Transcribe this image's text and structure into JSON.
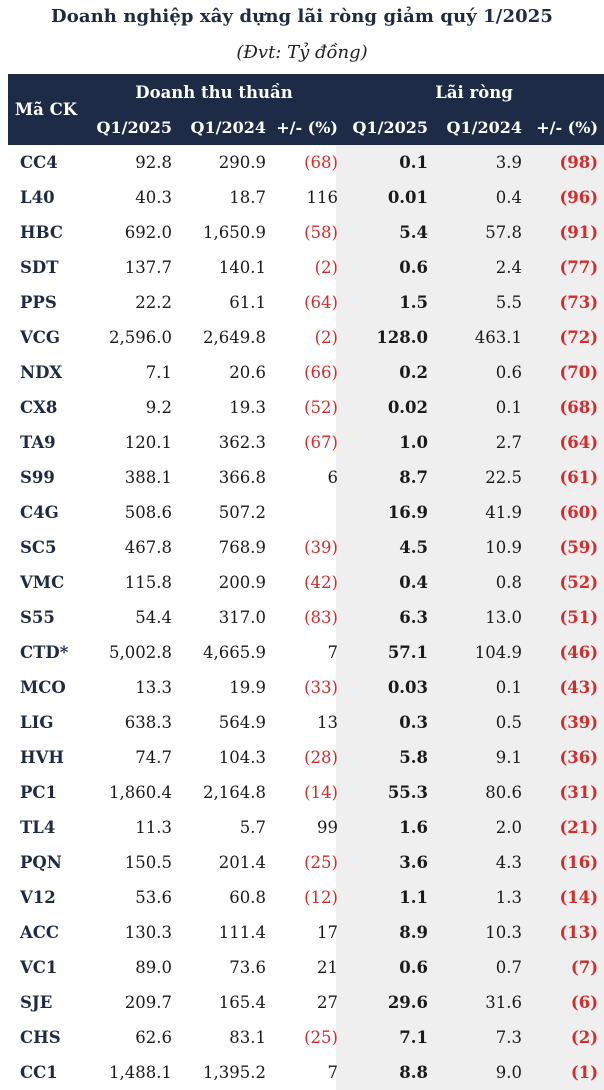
{
  "title": "Doanh nghiệp xây dựng lãi ròng giảm quý 1/2025",
  "unit": "(Đvt: Tỷ đồng)",
  "headers": {
    "code": "Mã CK",
    "revenue_group": "Doanh thu thuần",
    "profit_group": "Lãi ròng",
    "q1_2025": "Q1/2025",
    "q1_2024": "Q1/2024",
    "change": "+/- (%)"
  },
  "colors": {
    "header_bg": "#1d2b47",
    "negative": "#d62b2b",
    "band": "#efeff0"
  },
  "rows": [
    {
      "code": "CC4",
      "rev25": "92.8",
      "rev24": "290.9",
      "revchg": "(68)",
      "pro25": "0.1",
      "pro24": "3.9",
      "prochg": "(98)"
    },
    {
      "code": "L40",
      "rev25": "40.3",
      "rev24": "18.7",
      "revchg": "116",
      "pro25": "0.01",
      "pro24": "0.4",
      "prochg": "(96)"
    },
    {
      "code": "HBC",
      "rev25": "692.0",
      "rev24": "1,650.9",
      "revchg": "(58)",
      "pro25": "5.4",
      "pro24": "57.8",
      "prochg": "(91)"
    },
    {
      "code": "SDT",
      "rev25": "137.7",
      "rev24": "140.1",
      "revchg": "(2)",
      "pro25": "0.6",
      "pro24": "2.4",
      "prochg": "(77)"
    },
    {
      "code": "PPS",
      "rev25": "22.2",
      "rev24": "61.1",
      "revchg": "(64)",
      "pro25": "1.5",
      "pro24": "5.5",
      "prochg": "(73)"
    },
    {
      "code": "VCG",
      "rev25": "2,596.0",
      "rev24": "2,649.8",
      "revchg": "(2)",
      "pro25": "128.0",
      "pro24": "463.1",
      "prochg": "(72)"
    },
    {
      "code": "NDX",
      "rev25": "7.1",
      "rev24": "20.6",
      "revchg": "(66)",
      "pro25": "0.2",
      "pro24": "0.6",
      "prochg": "(70)"
    },
    {
      "code": "CX8",
      "rev25": "9.2",
      "rev24": "19.3",
      "revchg": "(52)",
      "pro25": "0.02",
      "pro24": "0.1",
      "prochg": "(68)"
    },
    {
      "code": "TA9",
      "rev25": "120.1",
      "rev24": "362.3",
      "revchg": "(67)",
      "pro25": "1.0",
      "pro24": "2.7",
      "prochg": "(64)"
    },
    {
      "code": "S99",
      "rev25": "388.1",
      "rev24": "366.8",
      "revchg": "6",
      "pro25": "8.7",
      "pro24": "22.5",
      "prochg": "(61)"
    },
    {
      "code": "C4G",
      "rev25": "508.6",
      "rev24": "507.2",
      "revchg": "",
      "pro25": "16.9",
      "pro24": "41.9",
      "prochg": "(60)"
    },
    {
      "code": "SC5",
      "rev25": "467.8",
      "rev24": "768.9",
      "revchg": "(39)",
      "pro25": "4.5",
      "pro24": "10.9",
      "prochg": "(59)"
    },
    {
      "code": "VMC",
      "rev25": "115.8",
      "rev24": "200.9",
      "revchg": "(42)",
      "pro25": "0.4",
      "pro24": "0.8",
      "prochg": "(52)"
    },
    {
      "code": "S55",
      "rev25": "54.4",
      "rev24": "317.0",
      "revchg": "(83)",
      "pro25": "6.3",
      "pro24": "13.0",
      "prochg": "(51)"
    },
    {
      "code": "CTD*",
      "rev25": "5,002.8",
      "rev24": "4,665.9",
      "revchg": "7",
      "pro25": "57.1",
      "pro24": "104.9",
      "prochg": "(46)"
    },
    {
      "code": "MCO",
      "rev25": "13.3",
      "rev24": "19.9",
      "revchg": "(33)",
      "pro25": "0.03",
      "pro24": "0.1",
      "prochg": "(43)"
    },
    {
      "code": "LIG",
      "rev25": "638.3",
      "rev24": "564.9",
      "revchg": "13",
      "pro25": "0.3",
      "pro24": "0.5",
      "prochg": "(39)"
    },
    {
      "code": "HVH",
      "rev25": "74.7",
      "rev24": "104.3",
      "revchg": "(28)",
      "pro25": "5.8",
      "pro24": "9.1",
      "prochg": "(36)"
    },
    {
      "code": "PC1",
      "rev25": "1,860.4",
      "rev24": "2,164.8",
      "revchg": "(14)",
      "pro25": "55.3",
      "pro24": "80.6",
      "prochg": "(31)"
    },
    {
      "code": "TL4",
      "rev25": "11.3",
      "rev24": "5.7",
      "revchg": "99",
      "pro25": "1.6",
      "pro24": "2.0",
      "prochg": "(21)"
    },
    {
      "code": "PQN",
      "rev25": "150.5",
      "rev24": "201.4",
      "revchg": "(25)",
      "pro25": "3.6",
      "pro24": "4.3",
      "prochg": "(16)"
    },
    {
      "code": "V12",
      "rev25": "53.6",
      "rev24": "60.8",
      "revchg": "(12)",
      "pro25": "1.1",
      "pro24": "1.3",
      "prochg": "(14)"
    },
    {
      "code": "ACC",
      "rev25": "130.3",
      "rev24": "111.4",
      "revchg": "17",
      "pro25": "8.9",
      "pro24": "10.3",
      "prochg": "(13)"
    },
    {
      "code": "VC1",
      "rev25": "89.0",
      "rev24": "73.6",
      "revchg": "21",
      "pro25": "0.6",
      "pro24": "0.7",
      "prochg": "(7)"
    },
    {
      "code": "SJE",
      "rev25": "209.7",
      "rev24": "165.4",
      "revchg": "27",
      "pro25": "29.6",
      "pro24": "31.6",
      "prochg": "(6)"
    },
    {
      "code": "CHS",
      "rev25": "62.6",
      "rev24": "83.1",
      "revchg": "(25)",
      "pro25": "7.1",
      "pro24": "7.3",
      "prochg": "(2)"
    },
    {
      "code": "CC1",
      "rev25": "1,488.1",
      "rev24": "1,395.2",
      "revchg": "7",
      "pro25": "8.8",
      "pro24": "9.0",
      "prochg": "(1)"
    }
  ]
}
